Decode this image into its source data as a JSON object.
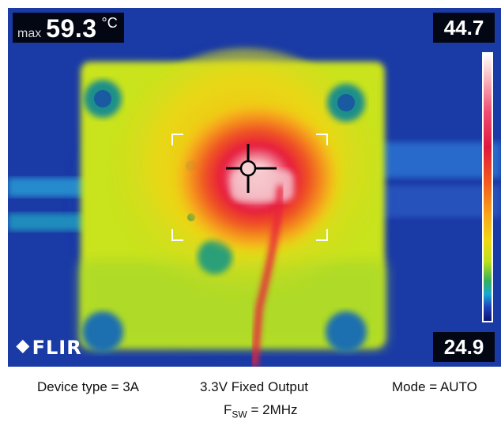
{
  "thermal_image": {
    "max_label": "max",
    "max_value": "59.3",
    "max_unit": "°C",
    "scale_max": "44.7",
    "scale_min": "24.9",
    "brand": "FLIR",
    "brand_icon": "flir-diamond-icon",
    "colors": {
      "background": "#1b3fa8",
      "board": "#d2e51f",
      "hot_spot": "#e6173d",
      "peak": "#ffffff"
    }
  },
  "captions": {
    "device_type": "Device type = 3A",
    "output": "3.3V Fixed Output",
    "mode": "Mode = AUTO",
    "fsw_prefix": "F",
    "fsw_sub": "SW",
    "fsw_value": " = 2MHz"
  }
}
